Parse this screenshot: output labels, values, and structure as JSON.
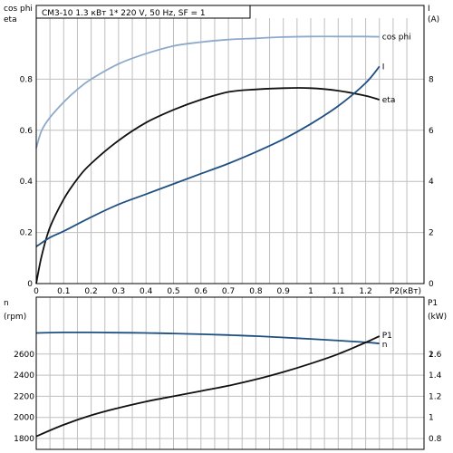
{
  "title": "CM3-10     1.3 кВт    1* 220 V, 50 Hz, SF = 1",
  "colors": {
    "black": "#111111",
    "dark_blue": "#1f5082",
    "light_blue": "#8eaacb",
    "grid": "#bfbfbf"
  },
  "chart_data": [
    {
      "type": "line",
      "x_label": "P2(кВт)",
      "x_ticks": [
        "0",
        "0.1",
        "0.2",
        "0.3",
        "0.4",
        "0.5",
        "0.6",
        "0.7",
        "0.8",
        "0.9",
        "1",
        "1.1",
        "1.2"
      ],
      "xlim": [
        0,
        1.4
      ],
      "grid": true,
      "left_axis": {
        "label_line1": "cos phi",
        "label_line2": "eta",
        "ylim": [
          0,
          1.0
        ],
        "ticks": [
          "0",
          "0.2",
          "0.4",
          "0.6",
          "0.8"
        ]
      },
      "right_axis": {
        "label_line1": "I",
        "label_line2": "(A)",
        "ylim": [
          0,
          10
        ],
        "ticks": [
          "0",
          "2",
          "4",
          "6",
          "8"
        ]
      },
      "series": [
        {
          "name": "cos phi",
          "axis": "left",
          "color": "light_blue",
          "x": [
            0,
            0.02,
            0.05,
            0.1,
            0.15,
            0.2,
            0.3,
            0.4,
            0.5,
            0.6,
            0.7,
            0.8,
            0.9,
            1.0,
            1.1,
            1.2,
            1.25
          ],
          "y": [
            0.53,
            0.6,
            0.65,
            0.71,
            0.76,
            0.8,
            0.86,
            0.9,
            0.93,
            0.945,
            0.955,
            0.96,
            0.965,
            0.967,
            0.967,
            0.967,
            0.966
          ]
        },
        {
          "name": "eta",
          "axis": "left",
          "color": "black",
          "x": [
            0,
            0.02,
            0.05,
            0.1,
            0.15,
            0.2,
            0.3,
            0.4,
            0.5,
            0.6,
            0.7,
            0.8,
            0.9,
            1.0,
            1.1,
            1.2,
            1.25
          ],
          "y": [
            0.0,
            0.11,
            0.22,
            0.33,
            0.41,
            0.47,
            0.56,
            0.63,
            0.68,
            0.72,
            0.75,
            0.76,
            0.765,
            0.765,
            0.755,
            0.735,
            0.72
          ]
        },
        {
          "name": "I",
          "axis": "right",
          "color": "dark_blue",
          "x": [
            0,
            0.05,
            0.1,
            0.2,
            0.3,
            0.4,
            0.5,
            0.6,
            0.7,
            0.8,
            0.9,
            1.0,
            1.1,
            1.2,
            1.25
          ],
          "y": [
            1.45,
            1.8,
            2.05,
            2.6,
            3.1,
            3.5,
            3.9,
            4.3,
            4.7,
            5.15,
            5.65,
            6.25,
            6.95,
            7.85,
            8.5
          ]
        }
      ]
    },
    {
      "type": "line",
      "xlim": [
        0,
        1.4
      ],
      "grid": true,
      "left_axis": {
        "label_line1": "n",
        "label_line2": "(rpm)",
        "ylim": [
          1700,
          2900
        ],
        "ticks": [
          "1800",
          "2000",
          "2200",
          "2400",
          "2600"
        ]
      },
      "right_axis": {
        "label_line1": "P1",
        "label_line2": "(kW)",
        "ylim": [
          0.8,
          2.6
        ],
        "ticks": [
          "0.8",
          "1",
          "1.2",
          "1.4",
          "1.6",
          "2"
        ]
      },
      "series": [
        {
          "name": "n",
          "axis": "left",
          "color": "dark_blue",
          "x": [
            0,
            0.1,
            0.2,
            0.3,
            0.4,
            0.5,
            0.6,
            0.7,
            0.8,
            0.9,
            1.0,
            1.1,
            1.2,
            1.25
          ],
          "y": [
            2800,
            2805,
            2805,
            2803,
            2800,
            2795,
            2788,
            2780,
            2770,
            2757,
            2743,
            2728,
            2712,
            2700
          ]
        },
        {
          "name": "P1",
          "axis": "right",
          "color": "black",
          "x": [
            0,
            0.1,
            0.2,
            0.3,
            0.4,
            0.5,
            0.6,
            0.7,
            0.8,
            0.9,
            1.0,
            1.1,
            1.2,
            1.25
          ],
          "y": [
            0.82,
            0.93,
            1.02,
            1.09,
            1.15,
            1.2,
            1.25,
            1.3,
            1.36,
            1.43,
            1.51,
            1.6,
            1.71,
            1.77
          ]
        }
      ]
    }
  ]
}
